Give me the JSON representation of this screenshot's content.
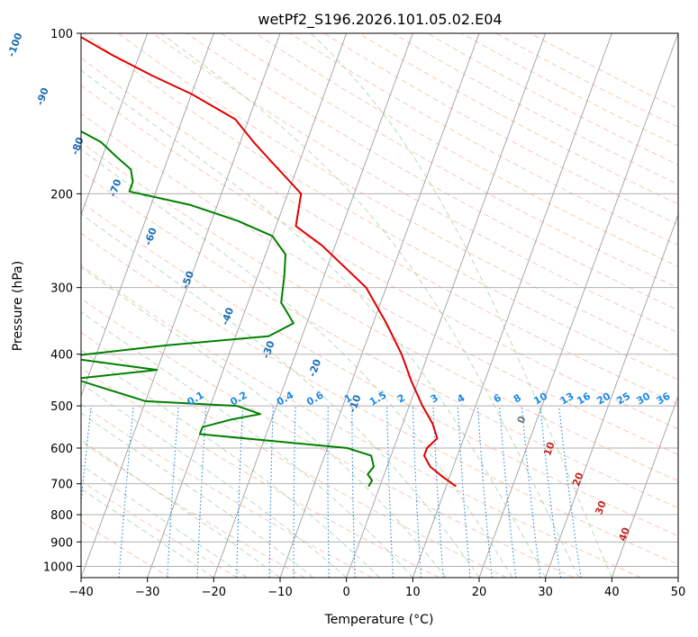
{
  "chart_data": {
    "type": "line",
    "subtype": "skew-t log-p",
    "title": "wetPf2_S196.2026.101.05.02.E04",
    "xlabel": "Temperature (°C)",
    "ylabel": "Pressure (hPa)",
    "xlim": [
      -40,
      50
    ],
    "ylim": [
      1050,
      100
    ],
    "y_scale": "log",
    "skew": 30,
    "grid": true,
    "x_ticks": [
      -40,
      -30,
      -20,
      -10,
      0,
      10,
      20,
      30,
      40,
      50
    ],
    "y_ticks": [
      100,
      200,
      300,
      400,
      500,
      600,
      700,
      800,
      900,
      1000
    ],
    "series": [
      {
        "name": "temperature",
        "color": "#e00000",
        "points": [
          {
            "t": 11.5,
            "p": 708
          },
          {
            "t": 9,
            "p": 680
          },
          {
            "t": 6.5,
            "p": 650
          },
          {
            "t": 5,
            "p": 620
          },
          {
            "t": 5,
            "p": 600
          },
          {
            "t": 6,
            "p": 575
          },
          {
            "t": 4.5,
            "p": 540
          },
          {
            "t": 2,
            "p": 500
          },
          {
            "t": -1,
            "p": 450
          },
          {
            "t": -4,
            "p": 400
          },
          {
            "t": -8,
            "p": 350
          },
          {
            "t": -13,
            "p": 300
          },
          {
            "t": -22,
            "p": 250
          },
          {
            "t": -27,
            "p": 230
          },
          {
            "t": -28,
            "p": 200
          },
          {
            "t": -34,
            "p": 175
          },
          {
            "t": -38,
            "p": 160
          },
          {
            "t": -42,
            "p": 145
          },
          {
            "t": -50,
            "p": 130
          },
          {
            "t": -57,
            "p": 120
          },
          {
            "t": -64,
            "p": 110
          },
          {
            "t": -71,
            "p": 100
          }
        ]
      },
      {
        "name": "dewpoint",
        "color": "#008000",
        "points": [
          {
            "t": -1.7,
            "p": 708
          },
          {
            "t": -1.5,
            "p": 690
          },
          {
            "t": -2.5,
            "p": 672
          },
          {
            "t": -2,
            "p": 650
          },
          {
            "t": -3,
            "p": 620
          },
          {
            "t": -7,
            "p": 600
          },
          {
            "t": -20,
            "p": 580
          },
          {
            "t": -30,
            "p": 565
          },
          {
            "t": -30,
            "p": 548
          },
          {
            "t": -26,
            "p": 530
          },
          {
            "t": -22,
            "p": 518
          },
          {
            "t": -26,
            "p": 500
          },
          {
            "t": -40,
            "p": 490
          },
          {
            "t": -52,
            "p": 445
          },
          {
            "t": -40,
            "p": 428
          },
          {
            "t": -55,
            "p": 405
          },
          {
            "t": -40,
            "p": 385
          },
          {
            "t": -25,
            "p": 370
          },
          {
            "t": -22,
            "p": 350
          },
          {
            "t": -25,
            "p": 320
          },
          {
            "t": -26,
            "p": 285
          },
          {
            "t": -27,
            "p": 260
          },
          {
            "t": -30,
            "p": 240
          },
          {
            "t": -36,
            "p": 225
          },
          {
            "t": -44,
            "p": 210
          },
          {
            "t": -54,
            "p": 198
          },
          {
            "t": -54,
            "p": 190
          },
          {
            "t": -55,
            "p": 180
          },
          {
            "t": -58,
            "p": 170
          },
          {
            "t": -61,
            "p": 160
          },
          {
            "t": -66,
            "p": 150
          },
          {
            "t": -73,
            "p": 140
          },
          {
            "t": -79,
            "p": 130
          },
          {
            "t": -86,
            "p": 120
          },
          {
            "t": -93,
            "p": 110
          },
          {
            "t": -101,
            "p": 100
          }
        ]
      }
    ],
    "isotherms": {
      "color": "#a0a0a0",
      "values": [
        -130,
        -120,
        -110,
        -100,
        -90,
        -80,
        -70,
        -60,
        -50,
        -40,
        -30,
        -20,
        -10,
        0,
        10,
        20,
        30,
        40,
        50
      ]
    },
    "dry_adiabats": {
      "color": "#f4a582",
      "style": "dashed"
    },
    "moist_adiabats": {
      "color": "#98d098",
      "style": "dashed"
    },
    "mixing_ratio": {
      "color": "#1e88e5",
      "style": "dotted",
      "labels": [
        "0.1",
        "0.2",
        "0.4",
        "0.6",
        "1",
        "1.5",
        "2",
        "3",
        "4",
        "6",
        "8",
        "10",
        "13",
        "16",
        "20",
        "25",
        "30",
        "36"
      ],
      "label_x": [
        -22.5,
        -16,
        -9,
        -4.5,
        0.5,
        5,
        8.5,
        13.5,
        17.5,
        23,
        26,
        29.5,
        33.5,
        36,
        39,
        42,
        45,
        48
      ]
    },
    "isotherm_labels": {
      "color": "#1f6fb4",
      "labels": [
        "-100",
        "-90",
        "-80",
        "-70",
        "-60",
        "-50",
        "-40",
        "-30",
        "-20",
        "-10"
      ],
      "positions": [
        {
          "t": -79,
          "p": 104
        },
        {
          "t": -72,
          "p": 130
        },
        {
          "t": -64,
          "p": 161
        },
        {
          "t": -56,
          "p": 193
        },
        {
          "t": -48,
          "p": 238
        },
        {
          "t": -40,
          "p": 287
        },
        {
          "t": -32,
          "p": 336
        },
        {
          "t": -24,
          "p": 388
        },
        {
          "t": -16,
          "p": 420
        },
        {
          "t": -8,
          "p": 490
        }
      ]
    },
    "temperature_labels": {
      "color": "#c62828",
      "labels": [
        "10",
        "20",
        "30",
        "40"
      ],
      "positions": [
        {
          "t": 24,
          "p": 605
        },
        {
          "t": 30,
          "p": 690
        },
        {
          "t": 35,
          "p": 780
        },
        {
          "t": 40,
          "p": 875
        }
      ]
    },
    "zero_label": {
      "text": "0",
      "color": "#777777",
      "position": {
        "t": 18,
        "p": 525
      }
    }
  }
}
